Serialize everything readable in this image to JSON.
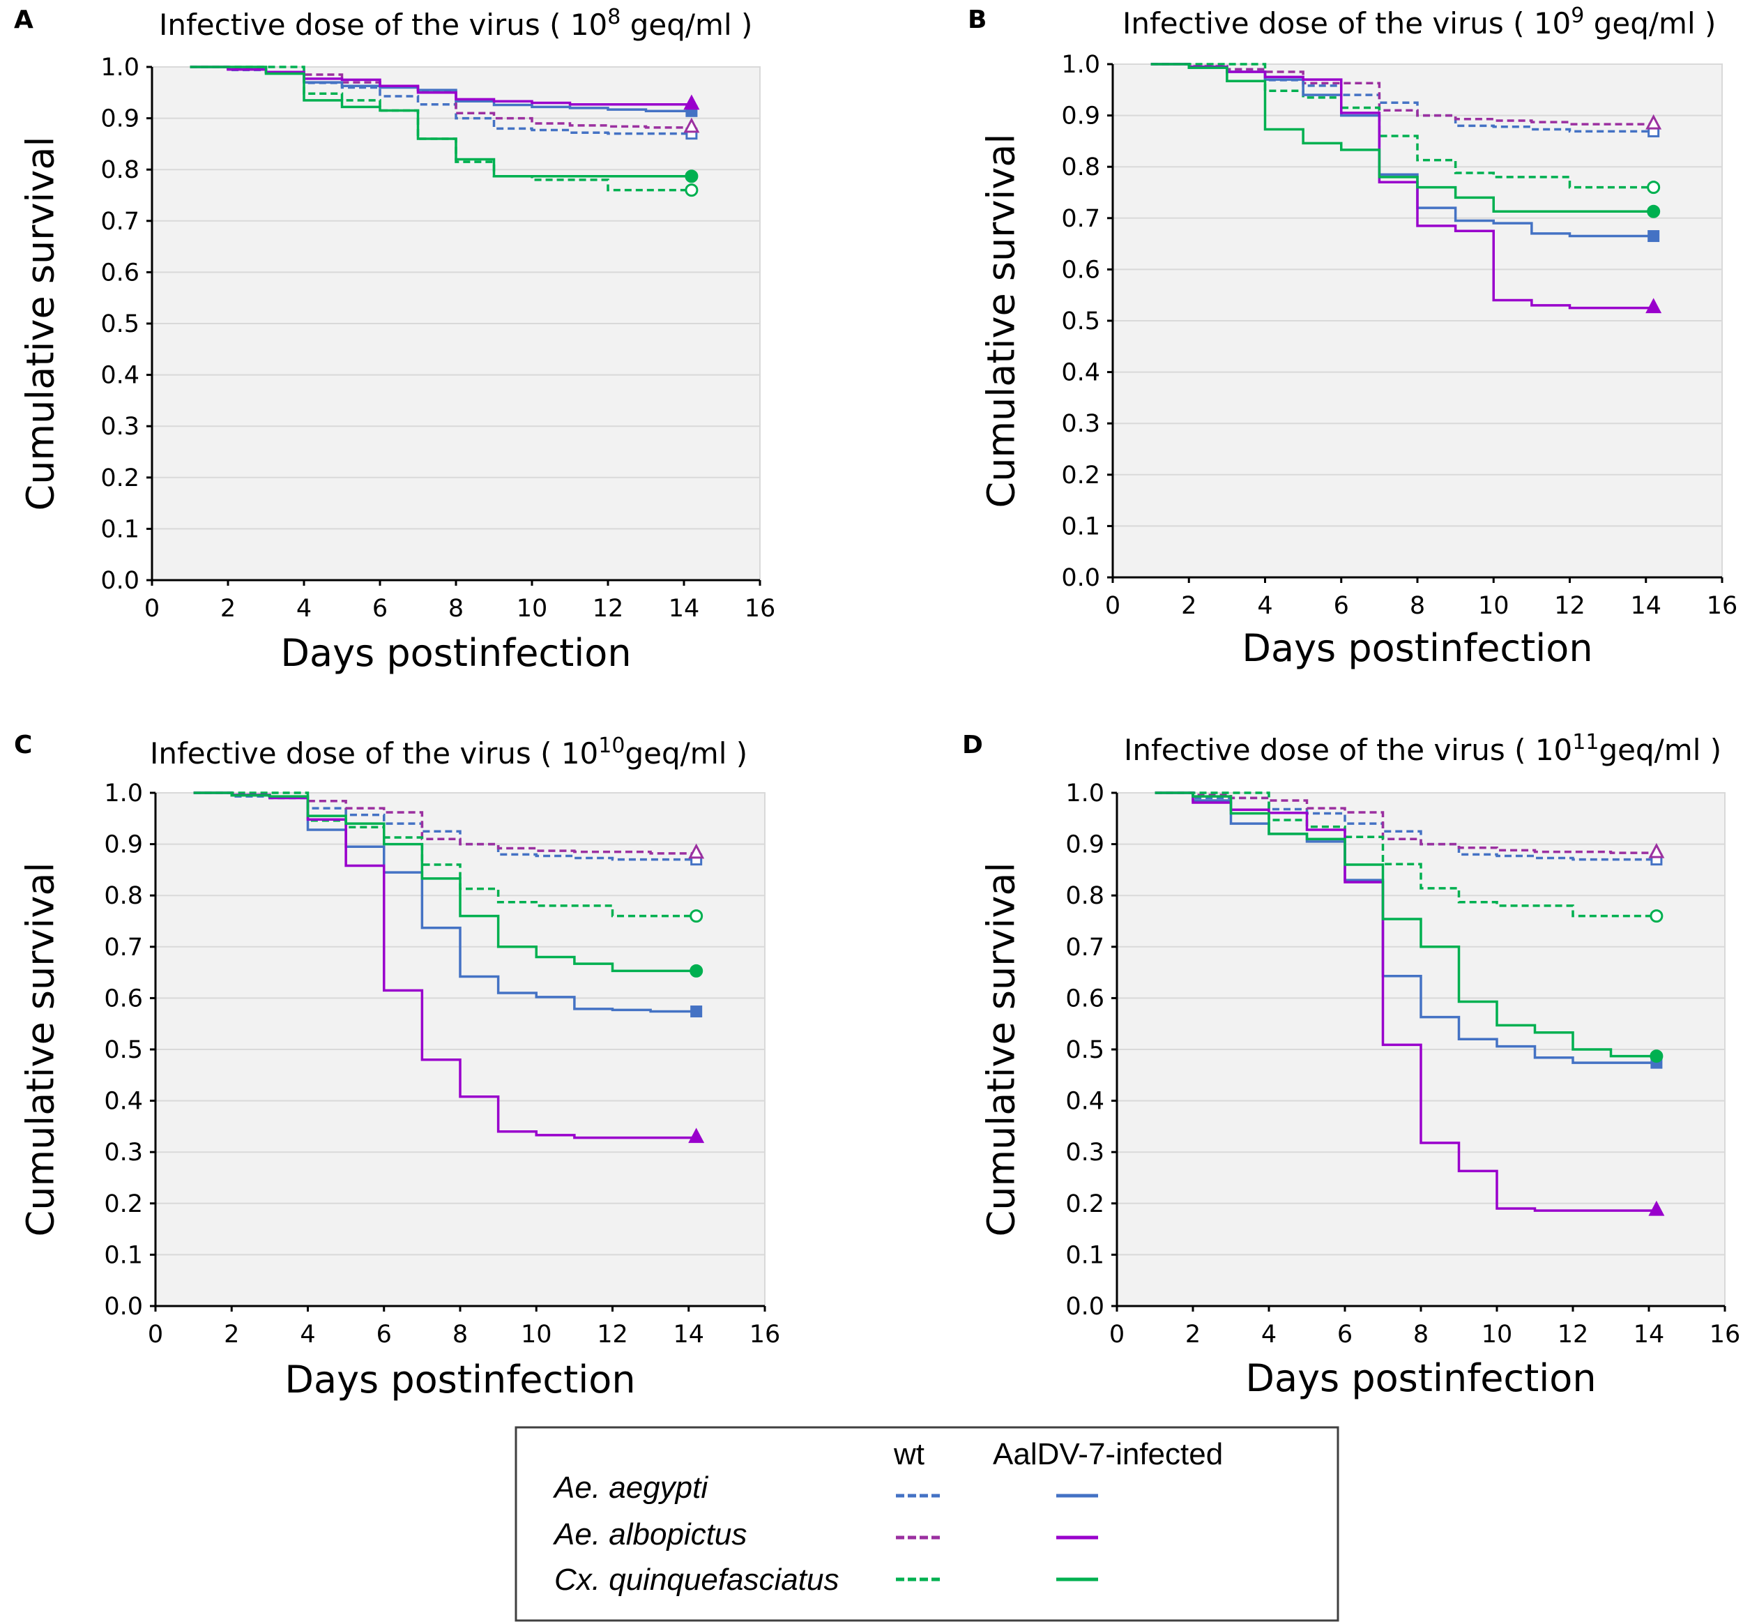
{
  "legend": {
    "header_wt": "wt",
    "header_infected": "AalDV-7-infected",
    "species": [
      "Ae. aegypti",
      "Ae. albopictus",
      "Cx. quinquefasciatus"
    ]
  },
  "colors": {
    "aegypti": "#4472C4",
    "albopictus_wt": "#9B30A0",
    "albopictus_infected": "#9900CC",
    "quinquefasciatus": "#00B050",
    "plot_bg": "#F2F2F2",
    "grid": "#D9D9D9"
  },
  "chart_data": [
    {
      "panel": "A",
      "type": "line",
      "step": true,
      "title": {
        "prefix": "Infective dose of the virus ( ",
        "base": "10",
        "exponent": "8",
        "suffix": " geq/ml )"
      },
      "xlabel": "Days postinfection",
      "ylabel": "Cumulative survival",
      "xlim": [
        0,
        16
      ],
      "ylim": [
        0,
        1
      ],
      "xticks": [
        "0",
        "2",
        "4",
        "6",
        "8",
        "10",
        "12",
        "14",
        "16"
      ],
      "yticks": [
        "0.0",
        "0.1",
        "0.2",
        "0.3",
        "0.4",
        "0.5",
        "0.6",
        "0.7",
        "0.8",
        "0.9",
        "1.0"
      ],
      "grid": true,
      "days": [
        1,
        2,
        3,
        4,
        5,
        6,
        7,
        8,
        9,
        10,
        11,
        12,
        13,
        14
      ],
      "end_day": 14.2,
      "series": [
        {
          "name": "Ae. aegypti wt",
          "values": [
            1,
            0.994,
            0.99,
            0.969,
            0.96,
            0.943,
            0.927,
            0.9,
            0.88,
            0.877,
            0.872,
            0.87,
            0.87,
            0.87
          ]
        },
        {
          "name": "Ae. albopictus wt",
          "values": [
            1,
            0.995,
            0.99,
            0.985,
            0.97,
            0.962,
            0.952,
            0.91,
            0.9,
            0.89,
            0.886,
            0.884,
            0.882,
            0.882
          ]
        },
        {
          "name": "Cx. quinquefasciatus wt",
          "values": [
            1,
            1,
            1,
            0.948,
            0.935,
            0.915,
            0.86,
            0.815,
            0.787,
            0.78,
            0.78,
            0.76,
            0.76,
            0.76
          ]
        },
        {
          "name": "Ae. aegypti AalDV-7-infected",
          "values": [
            1,
            0.995,
            0.99,
            0.97,
            0.963,
            0.96,
            0.955,
            0.933,
            0.926,
            0.922,
            0.92,
            0.917,
            0.914,
            0.914
          ]
        },
        {
          "name": "Ae. albopictus AalDV-7-infected",
          "values": [
            1,
            0.995,
            0.99,
            0.977,
            0.975,
            0.963,
            0.95,
            0.937,
            0.933,
            0.93,
            0.927,
            0.927,
            0.927,
            0.927
          ]
        },
        {
          "name": "Cx. quinquefasciatus AalDV-7-infected",
          "values": [
            1,
            1,
            0.987,
            0.935,
            0.922,
            0.915,
            0.86,
            0.82,
            0.787,
            0.787,
            0.787,
            0.787,
            0.787,
            0.787
          ]
        }
      ]
    },
    {
      "panel": "B",
      "type": "line",
      "step": true,
      "title": {
        "prefix": "Infective dose of the virus ( ",
        "base": "10",
        "exponent": "9",
        "suffix": " geq/ml )"
      },
      "xlabel": "Days postinfection",
      "ylabel": "Cumulative survival",
      "xlim": [
        0,
        16
      ],
      "ylim": [
        0,
        1
      ],
      "xticks": [
        "0",
        "2",
        "4",
        "6",
        "8",
        "10",
        "12",
        "14",
        "16"
      ],
      "yticks": [
        "0.0",
        "0.1",
        "0.2",
        "0.3",
        "0.4",
        "0.5",
        "0.6",
        "0.7",
        "0.8",
        "0.9",
        "1.0"
      ],
      "grid": true,
      "days": [
        1,
        2,
        3,
        4,
        5,
        6,
        7,
        8,
        9,
        10,
        11,
        12,
        13,
        14
      ],
      "end_day": 14.2,
      "series": [
        {
          "name": "Ae. aegypti wt",
          "values": [
            1,
            0.995,
            0.99,
            0.969,
            0.958,
            0.94,
            0.925,
            0.9,
            0.88,
            0.878,
            0.873,
            0.869,
            0.869,
            0.869
          ]
        },
        {
          "name": "Ae. albopictus wt",
          "values": [
            1,
            0.996,
            0.99,
            0.985,
            0.963,
            0.963,
            0.91,
            0.9,
            0.893,
            0.89,
            0.887,
            0.883,
            0.883,
            0.883
          ]
        },
        {
          "name": "Cx. quinquefasciatus wt",
          "values": [
            1,
            1,
            1,
            0.948,
            0.935,
            0.915,
            0.86,
            0.813,
            0.788,
            0.78,
            0.78,
            0.76,
            0.76,
            0.76
          ]
        },
        {
          "name": "Ae. aegypti AalDV-7-infected",
          "values": [
            1,
            0.993,
            0.985,
            0.97,
            0.94,
            0.9,
            0.785,
            0.72,
            0.695,
            0.69,
            0.67,
            0.665,
            0.665,
            0.665
          ]
        },
        {
          "name": "Ae. albopictus AalDV-7-infected",
          "values": [
            1,
            0.995,
            0.985,
            0.975,
            0.97,
            0.905,
            0.77,
            0.685,
            0.675,
            0.54,
            0.53,
            0.525,
            0.525,
            0.525
          ]
        },
        {
          "name": "Cx. quinquefasciatus AalDV-7-infected",
          "values": [
            1,
            0.993,
            0.967,
            0.873,
            0.846,
            0.833,
            0.78,
            0.76,
            0.74,
            0.713,
            0.713,
            0.713,
            0.713,
            0.713
          ]
        }
      ]
    },
    {
      "panel": "C",
      "type": "line",
      "step": true,
      "title": {
        "prefix": "Infective dose of the virus ( ",
        "base": "10",
        "exponent": "10",
        "suffix": "geq/ml )"
      },
      "xlabel": "Days postinfection",
      "ylabel": "Cumulative survival",
      "xlim": [
        0,
        16
      ],
      "ylim": [
        0,
        1
      ],
      "xticks": [
        "0",
        "2",
        "4",
        "6",
        "8",
        "10",
        "12",
        "14",
        "16"
      ],
      "yticks": [
        "0.0",
        "0.1",
        "0.2",
        "0.3",
        "0.4",
        "0.5",
        "0.6",
        "0.7",
        "0.8",
        "0.9",
        "1.0"
      ],
      "grid": true,
      "days": [
        1,
        2,
        3,
        4,
        5,
        6,
        7,
        8,
        9,
        10,
        11,
        12,
        13,
        14
      ],
      "end_day": 14.2,
      "series": [
        {
          "name": "Ae. aegypti wt",
          "values": [
            1,
            0.993,
            0.99,
            0.97,
            0.957,
            0.94,
            0.925,
            0.9,
            0.88,
            0.877,
            0.873,
            0.87,
            0.87,
            0.87
          ]
        },
        {
          "name": "Ae. albopictus wt",
          "values": [
            1,
            0.996,
            0.99,
            0.984,
            0.97,
            0.962,
            0.91,
            0.9,
            0.892,
            0.887,
            0.885,
            0.885,
            0.882,
            0.882
          ]
        },
        {
          "name": "Cx. quinquefasciatus wt",
          "values": [
            1,
            1,
            1,
            0.946,
            0.933,
            0.913,
            0.86,
            0.813,
            0.787,
            0.78,
            0.78,
            0.76,
            0.76,
            0.76
          ]
        },
        {
          "name": "Ae. aegypti AalDV-7-infected",
          "values": [
            1,
            0.995,
            0.99,
            0.928,
            0.895,
            0.845,
            0.737,
            0.642,
            0.61,
            0.602,
            0.579,
            0.577,
            0.574,
            0.574
          ]
        },
        {
          "name": "Ae. albopictus AalDV-7-infected",
          "values": [
            1,
            0.996,
            0.99,
            0.948,
            0.858,
            0.615,
            0.48,
            0.408,
            0.34,
            0.333,
            0.328,
            0.328,
            0.328,
            0.328
          ]
        },
        {
          "name": "Cx. quinquefasciatus AalDV-7-infected",
          "values": [
            1,
            0.995,
            0.993,
            0.955,
            0.94,
            0.9,
            0.833,
            0.76,
            0.7,
            0.68,
            0.667,
            0.653,
            0.653,
            0.653
          ]
        }
      ]
    },
    {
      "panel": "D",
      "type": "line",
      "step": true,
      "title": {
        "prefix": "Infective dose of the virus ( ",
        "base": "10",
        "exponent": "11",
        "suffix": "geq/ml )"
      },
      "xlabel": "Days postinfection",
      "ylabel": "Cumulative survival",
      "xlim": [
        0,
        16
      ],
      "ylim": [
        0,
        1
      ],
      "xticks": [
        "0",
        "2",
        "4",
        "6",
        "8",
        "10",
        "12",
        "14",
        "16"
      ],
      "yticks": [
        "0.0",
        "0.1",
        "0.2",
        "0.3",
        "0.4",
        "0.5",
        "0.6",
        "0.7",
        "0.8",
        "0.9",
        "1.0"
      ],
      "grid": true,
      "days": [
        1,
        2,
        3,
        4,
        5,
        6,
        7,
        8,
        9,
        10,
        11,
        12,
        13,
        14
      ],
      "end_day": 14.2,
      "series": [
        {
          "name": "Ae. aegypti wt",
          "values": [
            1,
            0.99,
            0.99,
            0.968,
            0.96,
            0.94,
            0.925,
            0.9,
            0.88,
            0.877,
            0.873,
            0.87,
            0.87,
            0.87
          ]
        },
        {
          "name": "Ae. albopictus wt",
          "values": [
            1,
            0.996,
            0.99,
            0.985,
            0.97,
            0.962,
            0.91,
            0.9,
            0.893,
            0.888,
            0.885,
            0.885,
            0.883,
            0.883
          ]
        },
        {
          "name": "Cx. quinquefasciatus wt",
          "values": [
            1,
            1,
            1,
            0.947,
            0.934,
            0.914,
            0.861,
            0.814,
            0.787,
            0.78,
            0.78,
            0.76,
            0.76,
            0.76
          ]
        },
        {
          "name": "Ae. aegypti AalDV-7-infected",
          "values": [
            1,
            0.985,
            0.94,
            0.92,
            0.905,
            0.83,
            0.643,
            0.563,
            0.52,
            0.506,
            0.484,
            0.474,
            0.474,
            0.474
          ]
        },
        {
          "name": "Ae. albopictus AalDV-7-infected",
          "values": [
            1,
            0.981,
            0.967,
            0.961,
            0.928,
            0.826,
            0.509,
            0.318,
            0.263,
            0.19,
            0.186,
            0.186,
            0.186,
            0.186
          ]
        },
        {
          "name": "Cx. quinquefasciatus AalDV-7-infected",
          "values": [
            1,
            0.993,
            0.96,
            0.92,
            0.91,
            0.86,
            0.754,
            0.7,
            0.593,
            0.547,
            0.533,
            0.5,
            0.487,
            0.487
          ]
        }
      ]
    }
  ]
}
